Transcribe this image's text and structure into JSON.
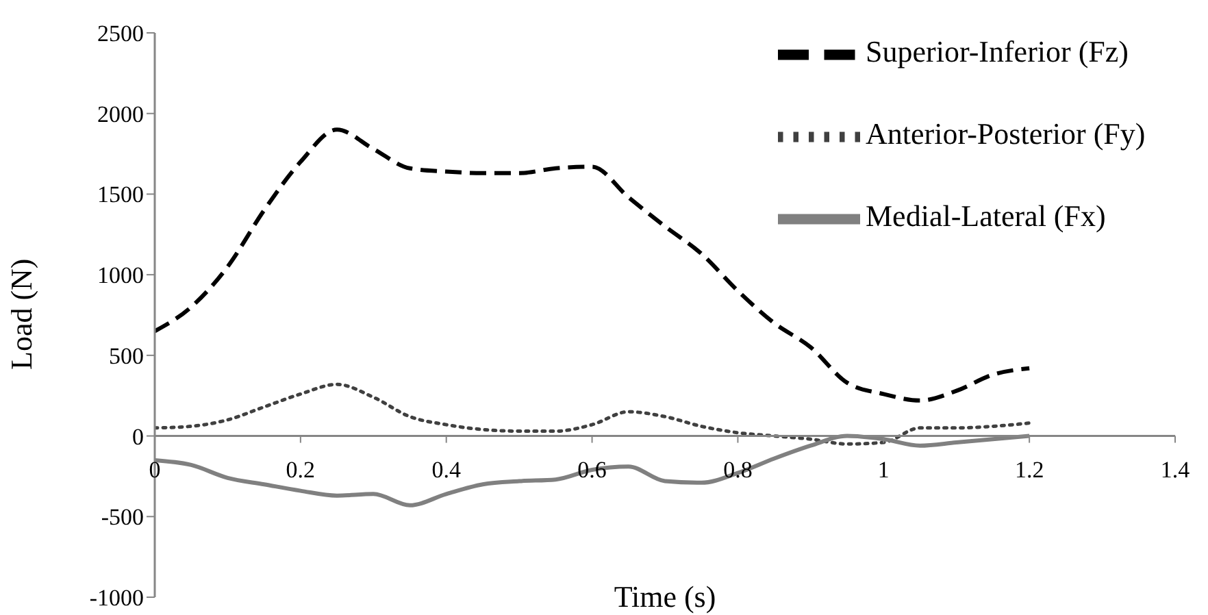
{
  "chart_data": {
    "type": "line",
    "xlabel": "Time (s)",
    "ylabel": "Load (N)",
    "x": [
      0,
      0.05,
      0.1,
      0.15,
      0.2,
      0.25,
      0.3,
      0.35,
      0.4,
      0.45,
      0.5,
      0.55,
      0.6,
      0.65,
      0.7,
      0.75,
      0.8,
      0.85,
      0.9,
      0.95,
      1.0,
      1.05,
      1.1,
      1.15,
      1.2
    ],
    "series": [
      {
        "name": "Superior-Inferior (Fz)",
        "color": "#000000",
        "line_style": "dashed",
        "values": [
          650,
          800,
          1050,
          1400,
          1700,
          1900,
          1780,
          1660,
          1640,
          1630,
          1630,
          1660,
          1670,
          1480,
          1300,
          1130,
          900,
          700,
          550,
          330,
          260,
          220,
          280,
          380,
          420
        ]
      },
      {
        "name": "Anterior-Posterior (Fy)",
        "color": "#404040",
        "line_style": "dotted",
        "values": [
          50,
          60,
          100,
          180,
          260,
          320,
          240,
          120,
          70,
          40,
          30,
          30,
          70,
          150,
          120,
          60,
          20,
          0,
          -20,
          -50,
          -40,
          50,
          50,
          60,
          80
        ]
      },
      {
        "name": "Medial-Lateral (Fx)",
        "color": "#808080",
        "line_style": "solid",
        "values": [
          -150,
          -180,
          -260,
          -300,
          -340,
          -370,
          -360,
          -430,
          -360,
          -300,
          -280,
          -270,
          -210,
          -190,
          -280,
          -290,
          -230,
          -140,
          -60,
          0,
          -20,
          -60,
          -40,
          -20,
          0
        ]
      }
    ],
    "xlim": [
      0,
      1.4
    ],
    "xticks": [
      0,
      0.2,
      0.4,
      0.6,
      0.8,
      1,
      1.2,
      1.4
    ],
    "ylim": [
      -1000,
      2500
    ],
    "yticks": [
      -1000,
      -500,
      0,
      500,
      1000,
      1500,
      2000,
      2500
    ],
    "grid": false,
    "legend": "top right",
    "marker": "none"
  }
}
